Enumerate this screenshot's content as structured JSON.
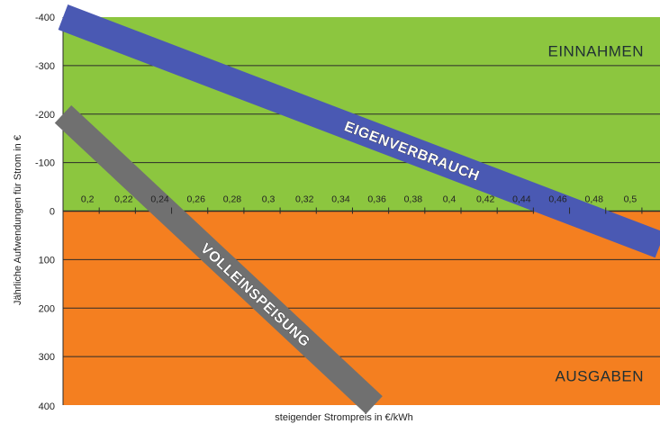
{
  "chart_data": {
    "type": "line",
    "xlabel": "steigender Strompreis in €/kWh",
    "ylabel": "Jährliche Aufwendungen für Strom in €",
    "xlim": [
      0.18,
      0.51
    ],
    "ylim": [
      -400,
      400
    ],
    "y_inverted": true,
    "x_ticks": [
      "0,2",
      "0,22",
      "0,24",
      "0,26",
      "0,28",
      "0,3",
      "0,32",
      "0,34",
      "0,36",
      "0,38",
      "0,4",
      "0,42",
      "0,44",
      "0,46",
      "0,48",
      "0,5"
    ],
    "y_ticks": [
      "-400",
      "-300",
      "-200",
      "-100",
      "0",
      "100",
      "200",
      "300",
      "400"
    ],
    "regions": [
      {
        "label": "EINNAHMEN",
        "from": -400,
        "to": 0,
        "color": "#8cc63f"
      },
      {
        "label": "AUSGABEN",
        "from": 0,
        "to": 400,
        "color": "#f47f20"
      }
    ],
    "grid": true,
    "series": [
      {
        "name": "EIGENVERBRAUCH",
        "color": "#4a59b3",
        "x": [
          0.18,
          0.51
        ],
        "y": [
          -400,
          70
        ]
      },
      {
        "name": "VOLLEINSPEISUNG",
        "color": "#707070",
        "x": [
          0.18,
          0.352
        ],
        "y": [
          -200,
          400
        ]
      }
    ]
  }
}
